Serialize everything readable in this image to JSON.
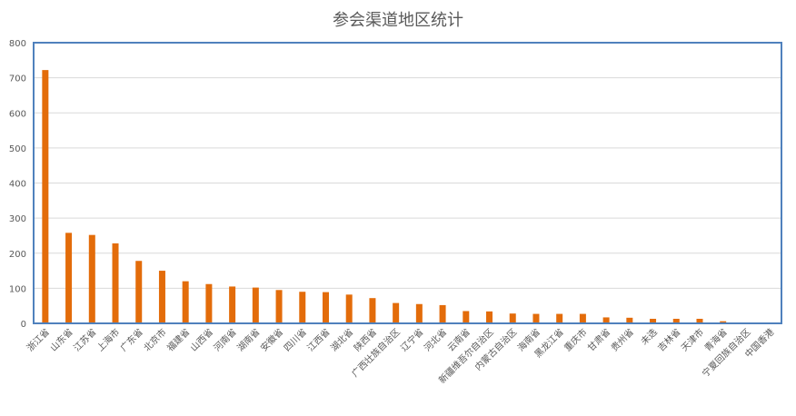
{
  "chart_data": {
    "type": "bar",
    "title": "参会渠道地区统计",
    "xlabel": "",
    "ylabel": "",
    "ylim": [
      0,
      800
    ],
    "yticks": [
      0,
      100,
      200,
      300,
      400,
      500,
      600,
      700,
      800
    ],
    "grid": true,
    "legend": "none",
    "colors": {
      "bar": "#E36C0A",
      "grid": "#D9D9D9",
      "plot_border": "#4F81BD"
    },
    "categories": [
      "浙江省",
      "山东省",
      "江苏省",
      "上海市",
      "广东省",
      "北京市",
      "福建省",
      "山西省",
      "河南省",
      "湖南省",
      "安徽省",
      "四川省",
      "江西省",
      "湖北省",
      "陕西省",
      "广西壮族自治区",
      "辽宁省",
      "河北省",
      "云南省",
      "新疆维吾尔自治区",
      "内蒙古自治区",
      "海南省",
      "黑龙江省",
      "重庆市",
      "甘肃省",
      "贵州省",
      "未选",
      "吉林省",
      "天津市",
      "青海省",
      "宁夏回族自治区",
      "中国香港"
    ],
    "values": [
      722,
      258,
      252,
      228,
      178,
      150,
      120,
      112,
      105,
      102,
      95,
      90,
      89,
      82,
      72,
      58,
      55,
      52,
      35,
      34,
      28,
      27,
      27,
      27,
      17,
      16,
      13,
      13,
      13,
      6,
      1,
      1
    ]
  }
}
